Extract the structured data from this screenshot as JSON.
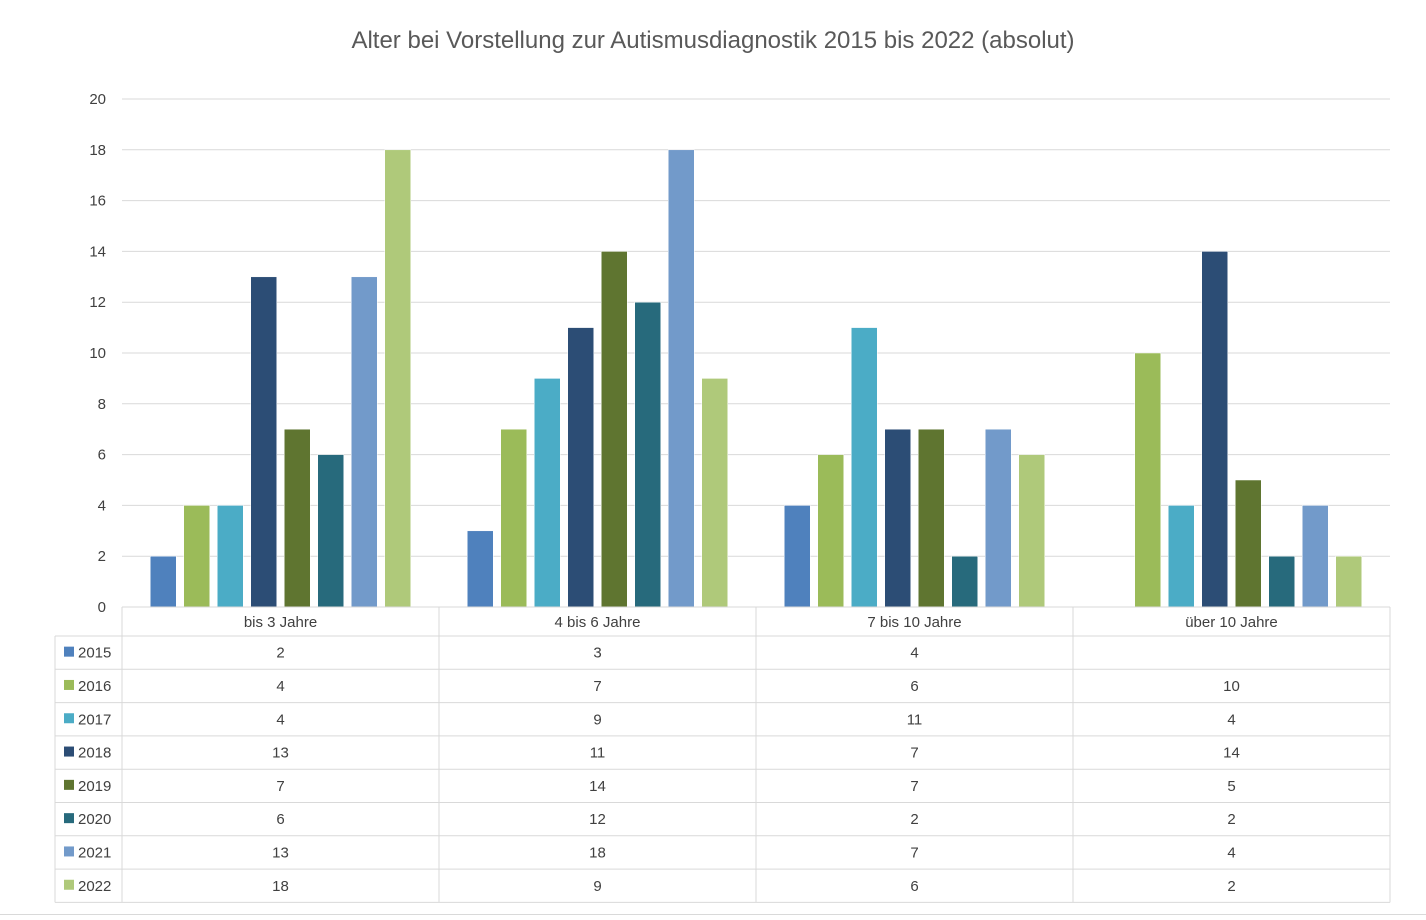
{
  "chart_data": {
    "type": "bar",
    "title": "Alter bei Vorstellung zur Autismusdiagnostik 2015 bis 2022 (absolut)",
    "xlabel": "",
    "ylabel": "",
    "ylim": [
      0,
      20
    ],
    "yticks": [
      0,
      2,
      4,
      6,
      8,
      10,
      12,
      14,
      16,
      18,
      20
    ],
    "grid": true,
    "legend": "data-table-below",
    "categories": [
      "bis 3 Jahre",
      "4 bis 6 Jahre",
      "7 bis 10 Jahre",
      "über 10 Jahre"
    ],
    "series": [
      {
        "name": "2015",
        "color": "#4f81bd",
        "values": [
          2,
          3,
          4,
          null
        ]
      },
      {
        "name": "2016",
        "color": "#9bbb59",
        "values": [
          4,
          7,
          6,
          10
        ]
      },
      {
        "name": "2017",
        "color": "#4bacc6",
        "values": [
          4,
          9,
          11,
          4
        ]
      },
      {
        "name": "2018",
        "color": "#2c4d75",
        "values": [
          13,
          11,
          7,
          14
        ]
      },
      {
        "name": "2019",
        "color": "#5f7530",
        "values": [
          7,
          14,
          7,
          5
        ]
      },
      {
        "name": "2020",
        "color": "#276a7c",
        "values": [
          6,
          12,
          2,
          2
        ]
      },
      {
        "name": "2021",
        "color": "#729aca",
        "values": [
          13,
          18,
          7,
          4
        ]
      },
      {
        "name": "2022",
        "color": "#afc97a",
        "values": [
          18,
          9,
          6,
          2
        ]
      }
    ]
  }
}
